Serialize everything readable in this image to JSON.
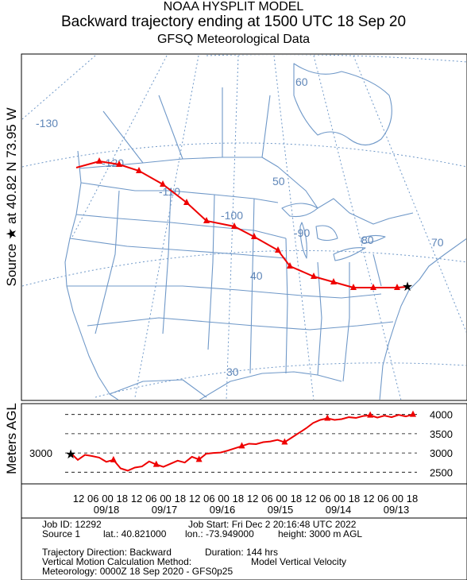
{
  "header": {
    "line1": "NOAA HYSPLIT MODEL",
    "line2": "Backward trajectory ending at 1500 UTC 18 Sep 20",
    "line3": "GFSQ Meteorological Data"
  },
  "side_labels": {
    "source": "Source ★ at 40.82 N 73.95 W",
    "height_axis": "Meters AGL"
  },
  "map_labels": {
    "lon_130": "-130",
    "lon_120": "-120",
    "lon_110": "-110",
    "lon_100": "-100",
    "lon_90": "-90",
    "lon_80": "80",
    "lon_70": "70",
    "lat_60": "60",
    "lat_50": "50",
    "lat_40": "40",
    "lat_30": "30"
  },
  "colors": {
    "trajectory": "#ee0000",
    "map_lines": "#6f98c8",
    "source_marker": "#000000"
  },
  "chart_data": {
    "type": "line",
    "series": [
      {
        "values": [
          3000,
          2820,
          2950,
          2920,
          2880,
          2770,
          2820,
          2600,
          2540,
          2620,
          2650,
          2780,
          2700,
          2640,
          2720,
          2800,
          2750,
          2900,
          2830,
          2980,
          3000,
          3010,
          3060,
          3120,
          3180,
          3240,
          3230,
          3280,
          3300,
          3340,
          3280,
          3400,
          3520,
          3640,
          3780,
          3860,
          3900,
          3860,
          3880,
          3930,
          3910,
          3960,
          3980,
          3920,
          3970,
          3930,
          3990,
          3950,
          4000
        ]
      }
    ],
    "x_tick_labels": [
      "12",
      "06",
      "00",
      "18",
      "12",
      "06",
      "00",
      "18",
      "12",
      "06",
      "00",
      "18",
      "12",
      "06",
      "00",
      "18",
      "12",
      "06",
      "00",
      "18",
      "12",
      "06",
      "00",
      "18"
    ],
    "date_labels": [
      "09/18",
      "09/17",
      "09/16",
      "09/15",
      "09/14",
      "09/13"
    ],
    "y_ticks": [
      2500,
      3000,
      3500,
      4000
    ],
    "start_height_label": "3000",
    "ylim": [
      2300,
      4200
    ]
  },
  "info": {
    "job_id": "Job ID: 12292",
    "job_start": "Job Start: Fri Dec  2 20:16:48 UTC 2022",
    "source_1": "Source 1",
    "lat": "lat.: 40.821000",
    "lon": "lon.: -73.949000",
    "height": "height: 3000 m AGL",
    "traj_direction": "Trajectory Direction: Backward",
    "duration": "Duration: 144 hrs",
    "vertical_motion": "Vertical Motion Calculation Method:",
    "vertical_model": "Model Vertical Velocity",
    "meteorology": "Meteorology: 0000Z 18 Sep 2020 - GFS0p25"
  }
}
